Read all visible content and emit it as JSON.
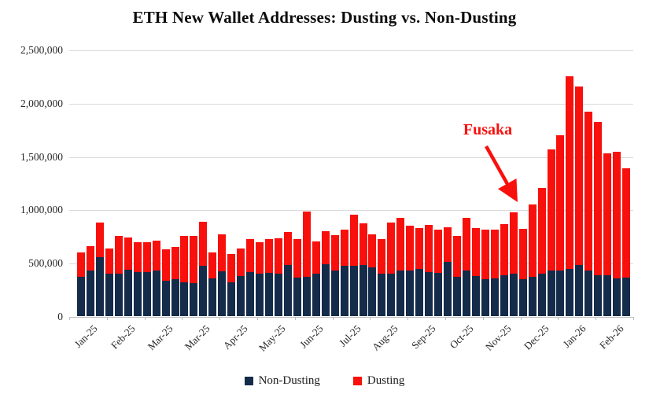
{
  "title": "ETH New Wallet Addresses: Dusting vs. Non-Dusting",
  "legend": {
    "items": [
      {
        "label": "Non-Dusting",
        "color": "#142b4a"
      },
      {
        "label": "Dusting",
        "color": "#f8100d"
      }
    ]
  },
  "chart_data": {
    "type": "bar",
    "stacked": true,
    "title": "ETH New Wallet Addresses: Dusting vs. Non-Dusting",
    "xlabel": "",
    "ylabel": "",
    "ylim": [
      0,
      2500000
    ],
    "grid": "horizontal",
    "legend_position": "bottom",
    "y_tick_labels": [
      "0",
      "500,000",
      "1,000,000",
      "1,500,000",
      "2,000,000",
      "2,500,000"
    ],
    "y_tick_values": [
      0,
      500000,
      1000000,
      1500000,
      2000000,
      2500000
    ],
    "x_tick_labels": [
      "Jan-25",
      "Feb-25",
      "Mar-25",
      "Mar-25",
      "Apr-25",
      "May-25",
      "Jun-25",
      "Jul-25",
      "Aug-25",
      "Sep-25",
      "Oct-25",
      "Nov-25",
      "Dec-25",
      "Jan-26",
      "Feb-26"
    ],
    "bars_per_label_group": 4,
    "bar_count": 59,
    "series": [
      {
        "name": "Non-Dusting",
        "color": "#142b4a",
        "values": [
          370000,
          430000,
          550000,
          395000,
          400000,
          435000,
          415000,
          415000,
          430000,
          335000,
          350000,
          320000,
          310000,
          475000,
          355000,
          420000,
          315000,
          375000,
          410000,
          400000,
          405000,
          395000,
          480000,
          360000,
          370000,
          400000,
          490000,
          430000,
          475000,
          470000,
          480000,
          455000,
          395000,
          400000,
          425000,
          425000,
          440000,
          415000,
          405000,
          510000,
          370000,
          425000,
          375000,
          350000,
          355000,
          380000,
          395000,
          345000,
          370000,
          400000,
          425000,
          430000,
          440000,
          480000,
          430000,
          380000,
          380000,
          355000,
          360000
        ]
      },
      {
        "name": "Dusting",
        "color": "#f8100d",
        "values": [
          230000,
          225000,
          325000,
          240000,
          350000,
          305000,
          275000,
          275000,
          280000,
          290000,
          300000,
          435000,
          445000,
          410000,
          240000,
          345000,
          270000,
          260000,
          310000,
          295000,
          320000,
          335000,
          310000,
          360000,
          610000,
          300000,
          310000,
          330000,
          340000,
          480000,
          390000,
          315000,
          330000,
          480000,
          495000,
          425000,
          385000,
          440000,
          410000,
          325000,
          380000,
          495000,
          450000,
          465000,
          460000,
          480000,
          575000,
          475000,
          680000,
          805000,
          1135000,
          1265000,
          1810000,
          1670000,
          1490000,
          1440000,
          1150000,
          1185000,
          1030000
        ]
      }
    ],
    "annotation": {
      "text": "Fusaka",
      "color": "#f8100d",
      "points_to_bar_index": 48
    }
  }
}
